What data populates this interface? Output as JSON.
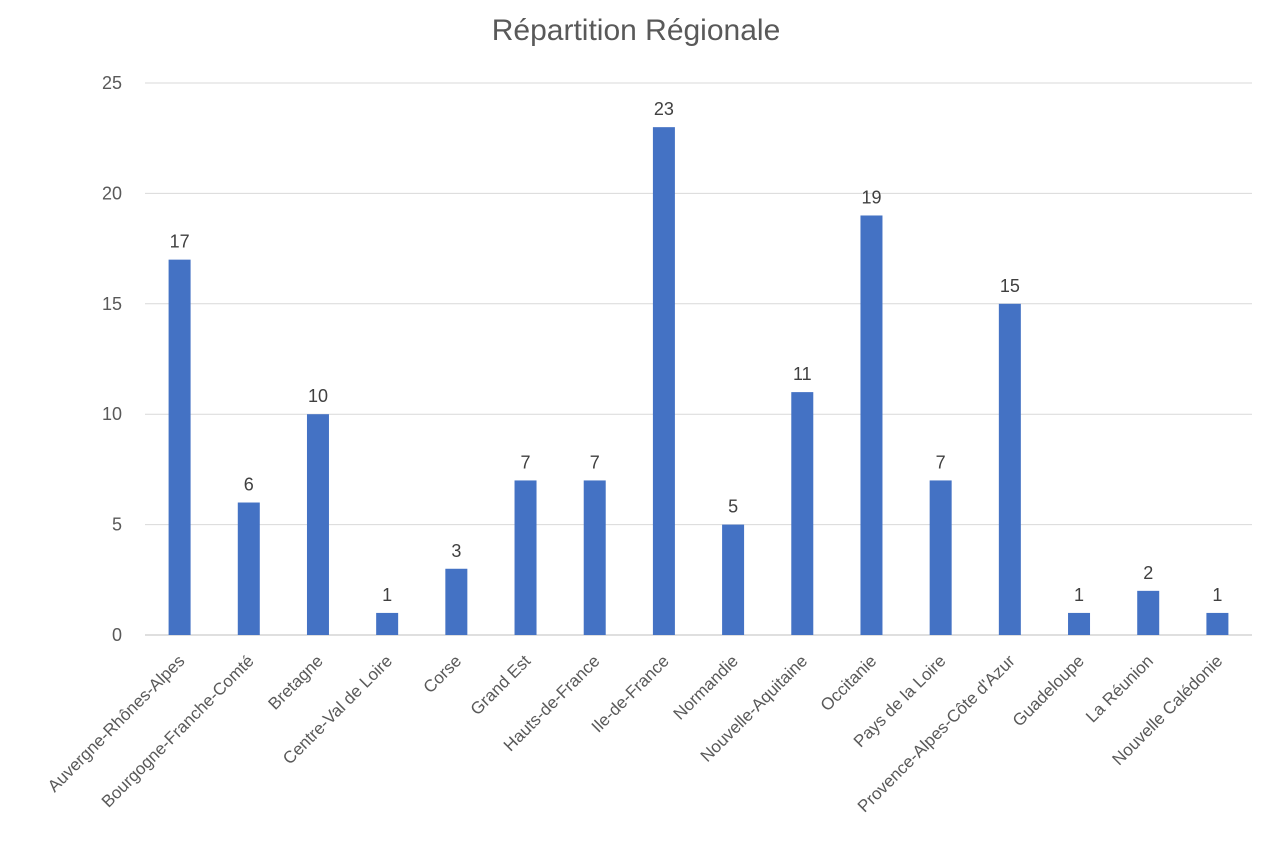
{
  "chart_data": {
    "type": "bar",
    "title": "Répartition Régionale",
    "categories": [
      "Auvergne-Rhônes-Alpes",
      "Bourgogne-Franche-Comté",
      "Bretagne",
      "Centre-Val de Loire",
      "Corse",
      "Grand Est",
      "Hauts-de-France",
      "Ile-de-France",
      "Normandie",
      "Nouvelle-Aquitaine",
      "Occitanie",
      "Pays de la Loire",
      "Provence-Alpes-Côte d'Azur",
      "Guadeloupe",
      "La Réunion",
      "Nouvelle Calédonie"
    ],
    "values": [
      17,
      6,
      10,
      1,
      3,
      7,
      7,
      23,
      5,
      11,
      19,
      7,
      15,
      1,
      2,
      1
    ],
    "ylim": [
      0,
      25
    ],
    "yticks": [
      0,
      5,
      10,
      15,
      20,
      25
    ],
    "grid": true,
    "data_labels": true,
    "bar_color": "#4472c4"
  }
}
